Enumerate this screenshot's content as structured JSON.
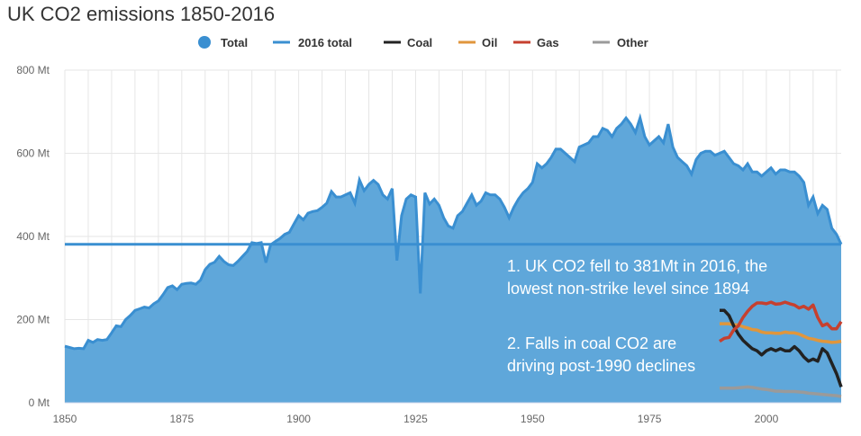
{
  "chart_data": {
    "type": "area",
    "title": "UK CO2 emissions 1850-2016",
    "xlabel": "",
    "ylabel": "",
    "xlim": [
      1850,
      2016
    ],
    "ylim": [
      0,
      800
    ],
    "grid": true,
    "legend_placement": "top-center",
    "x_ticks": [
      "1850",
      "1875",
      "1900",
      "1925",
      "1950",
      "1975",
      "2000"
    ],
    "y_ticks": [
      "0 Mt",
      "200 Mt",
      "400 Mt",
      "600 Mt",
      "800 Mt"
    ],
    "legend": [
      "Total",
      "2016 total",
      "Coal",
      "Oil",
      "Gas",
      "Other"
    ],
    "colors": {
      "Total": "#3a8fd1",
      "area": "#5fa7da",
      "2016 total": "#3a8fd1",
      "Coal": "#222222",
      "Oil": "#e0963c",
      "Gas": "#c6402f",
      "Other": "#9a9a9a"
    },
    "total": {
      "x_start": 1850,
      "values": [
        136,
        133,
        130,
        131,
        130,
        150,
        145,
        152,
        150,
        152,
        168,
        185,
        183,
        200,
        210,
        222,
        226,
        230,
        228,
        238,
        245,
        260,
        277,
        281,
        272,
        285,
        287,
        288,
        285,
        295,
        320,
        333,
        338,
        352,
        340,
        332,
        330,
        340,
        352,
        364,
        385,
        383,
        385,
        337,
        380,
        388,
        395,
        405,
        410,
        430,
        450,
        440,
        456,
        460,
        462,
        470,
        480,
        508,
        495,
        495,
        500,
        505,
        480,
        536,
        510,
        525,
        535,
        525,
        500,
        490,
        515,
        342,
        450,
        490,
        500,
        495,
        263,
        505,
        478,
        490,
        475,
        445,
        425,
        420,
        450,
        460,
        480,
        500,
        475,
        485,
        505,
        500,
        500,
        490,
        470,
        445,
        470,
        490,
        505,
        515,
        530,
        575,
        565,
        575,
        590,
        610,
        610,
        600,
        590,
        580,
        615,
        620,
        625,
        640,
        640,
        660,
        655,
        640,
        660,
        670,
        685,
        670,
        650,
        685,
        640,
        620,
        630,
        640,
        625,
        670,
        615,
        590,
        580,
        570,
        550,
        585,
        600,
        605,
        605,
        595,
        600,
        605,
        590,
        575,
        570,
        560,
        575,
        555,
        555,
        545,
        555,
        565,
        550,
        560,
        560,
        555,
        555,
        545,
        530,
        475,
        495,
        455,
        475,
        465,
        420,
        405,
        381
      ]
    },
    "total_2016": 381,
    "sector_x_start": 1990,
    "coal": [
      222,
      222,
      210,
      185,
      165,
      150,
      140,
      130,
      125,
      115,
      125,
      130,
      125,
      130,
      125,
      125,
      135,
      125,
      110,
      100,
      105,
      100,
      130,
      120,
      95,
      70,
      38
    ],
    "gas": [
      148,
      155,
      157,
      175,
      185,
      205,
      220,
      232,
      240,
      240,
      238,
      242,
      237,
      238,
      242,
      238,
      235,
      228,
      232,
      225,
      235,
      205,
      185,
      190,
      178,
      178,
      195
    ],
    "oil": [
      190,
      190,
      190,
      188,
      187,
      183,
      180,
      176,
      175,
      170,
      168,
      168,
      167,
      167,
      170,
      168,
      168,
      165,
      160,
      155,
      153,
      150,
      148,
      147,
      145,
      146,
      148
    ],
    "other": [
      35,
      35,
      35,
      35,
      36,
      37,
      38,
      37,
      35,
      33,
      32,
      30,
      28,
      28,
      27,
      27,
      27,
      26,
      25,
      23,
      22,
      21,
      20,
      19,
      18,
      17,
      15
    ],
    "annotations": [
      [
        "1. UK CO2 fell to 381Mt in 2016, the",
        "lowest non-strike level since 1894"
      ],
      [
        "2. Falls in coal CO2 are",
        "driving post-1990 declines"
      ]
    ]
  }
}
